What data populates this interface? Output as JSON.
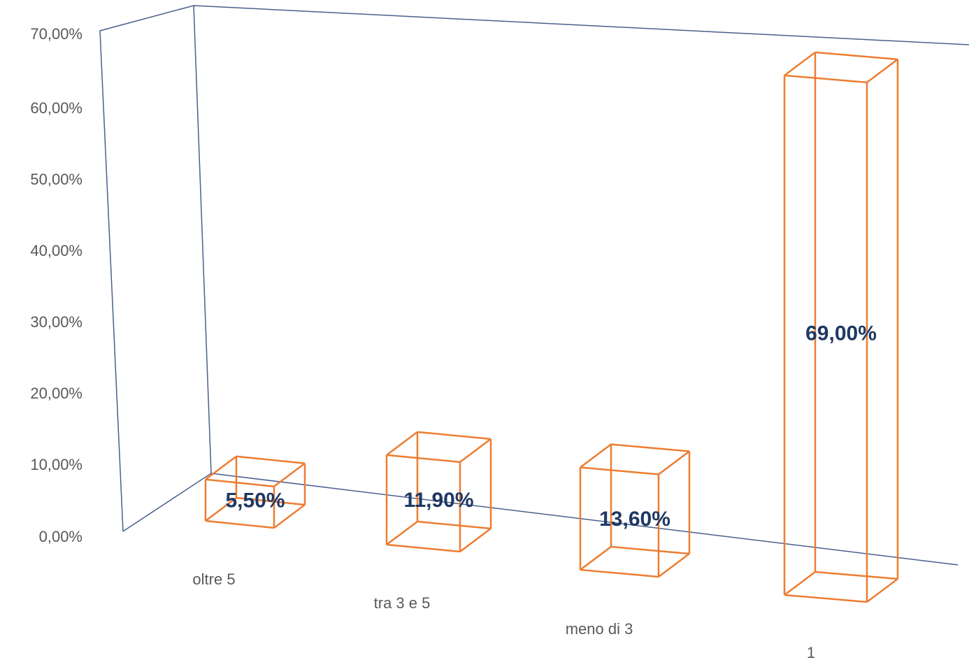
{
  "chart_data": {
    "type": "bar",
    "categories": [
      "oltre 5",
      "tra 3 e 5",
      "meno di 3",
      "1"
    ],
    "values": [
      5.5,
      11.9,
      13.6,
      69.0
    ],
    "data_labels": [
      "5,50%",
      "11,90%",
      "13,60%",
      "69,00%"
    ],
    "y_ticks": [
      "0,00%",
      "10,00%",
      "20,00%",
      "30,00%",
      "40,00%",
      "50,00%",
      "60,00%",
      "70,00%"
    ],
    "ylim": [
      0,
      70
    ],
    "title": "",
    "xlabel": "",
    "ylabel": "",
    "grid": false,
    "legend": "none",
    "style": "3d-wireframe"
  },
  "colors": {
    "bar_outline": "#ED7D31",
    "frame": "#4A5F8C",
    "label": "#1F3864",
    "tick_text": "#595959"
  }
}
